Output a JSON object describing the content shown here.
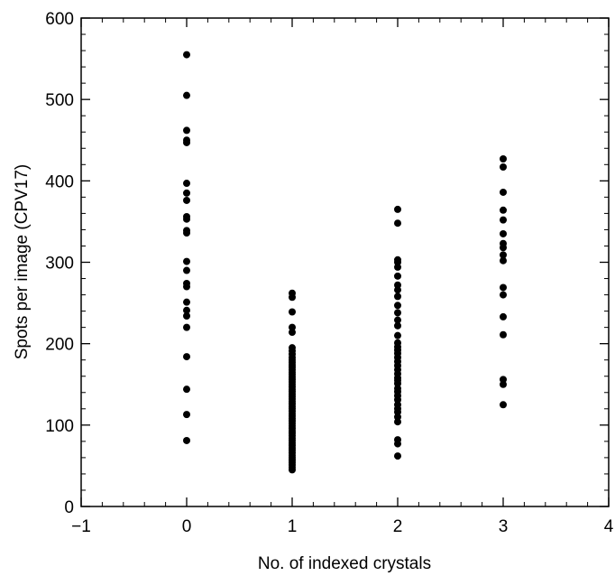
{
  "chart_data": {
    "type": "scatter",
    "title": "",
    "xlabel": "No. of indexed crystals",
    "ylabel": "Spots per image (CPV17)",
    "xlim": [
      -1,
      4
    ],
    "ylim": [
      0,
      600
    ],
    "x_ticks": [
      -1,
      0,
      1,
      2,
      3,
      4
    ],
    "x_tick_labels": [
      "−1",
      "0",
      "1",
      "2",
      "3",
      "4"
    ],
    "y_ticks": [
      0,
      100,
      200,
      300,
      400,
      500,
      600
    ],
    "y_tick_labels": [
      "0",
      "100",
      "200",
      "300",
      "400",
      "500",
      "600"
    ],
    "grid": false,
    "marker_color": "#000000",
    "series": [
      {
        "x": 0,
        "y": [
          555,
          505,
          462,
          450,
          447,
          397,
          385,
          376,
          356,
          353,
          339,
          336,
          301,
          290,
          274,
          270,
          251,
          241,
          234,
          220,
          184,
          144,
          113,
          81
        ]
      },
      {
        "x": 1,
        "y": [
          262,
          257,
          239,
          220,
          214,
          195,
          191,
          187,
          183,
          180,
          177,
          174,
          171,
          168,
          165,
          162,
          159,
          156,
          153,
          150,
          147,
          144,
          141,
          138,
          135,
          132,
          129,
          126,
          123,
          120,
          117,
          114,
          111,
          108,
          105,
          102,
          99,
          96,
          93,
          90,
          87,
          84,
          81,
          78,
          75,
          72,
          69,
          66,
          63,
          60,
          57,
          54,
          51,
          48,
          45
        ]
      },
      {
        "x": 2,
        "y": [
          365,
          348,
          303,
          300,
          294,
          283,
          272,
          266,
          258,
          247,
          238,
          229,
          222,
          210,
          201,
          196,
          192,
          188,
          183,
          178,
          173,
          168,
          163,
          158,
          155,
          151,
          145,
          141,
          136,
          131,
          125,
          120,
          116,
          110,
          104,
          82,
          77,
          62
        ]
      },
      {
        "x": 3,
        "y": [
          427,
          417,
          386,
          364,
          352,
          335,
          323,
          318,
          309,
          302,
          269,
          260,
          233,
          211,
          156,
          150,
          125
        ]
      }
    ]
  }
}
